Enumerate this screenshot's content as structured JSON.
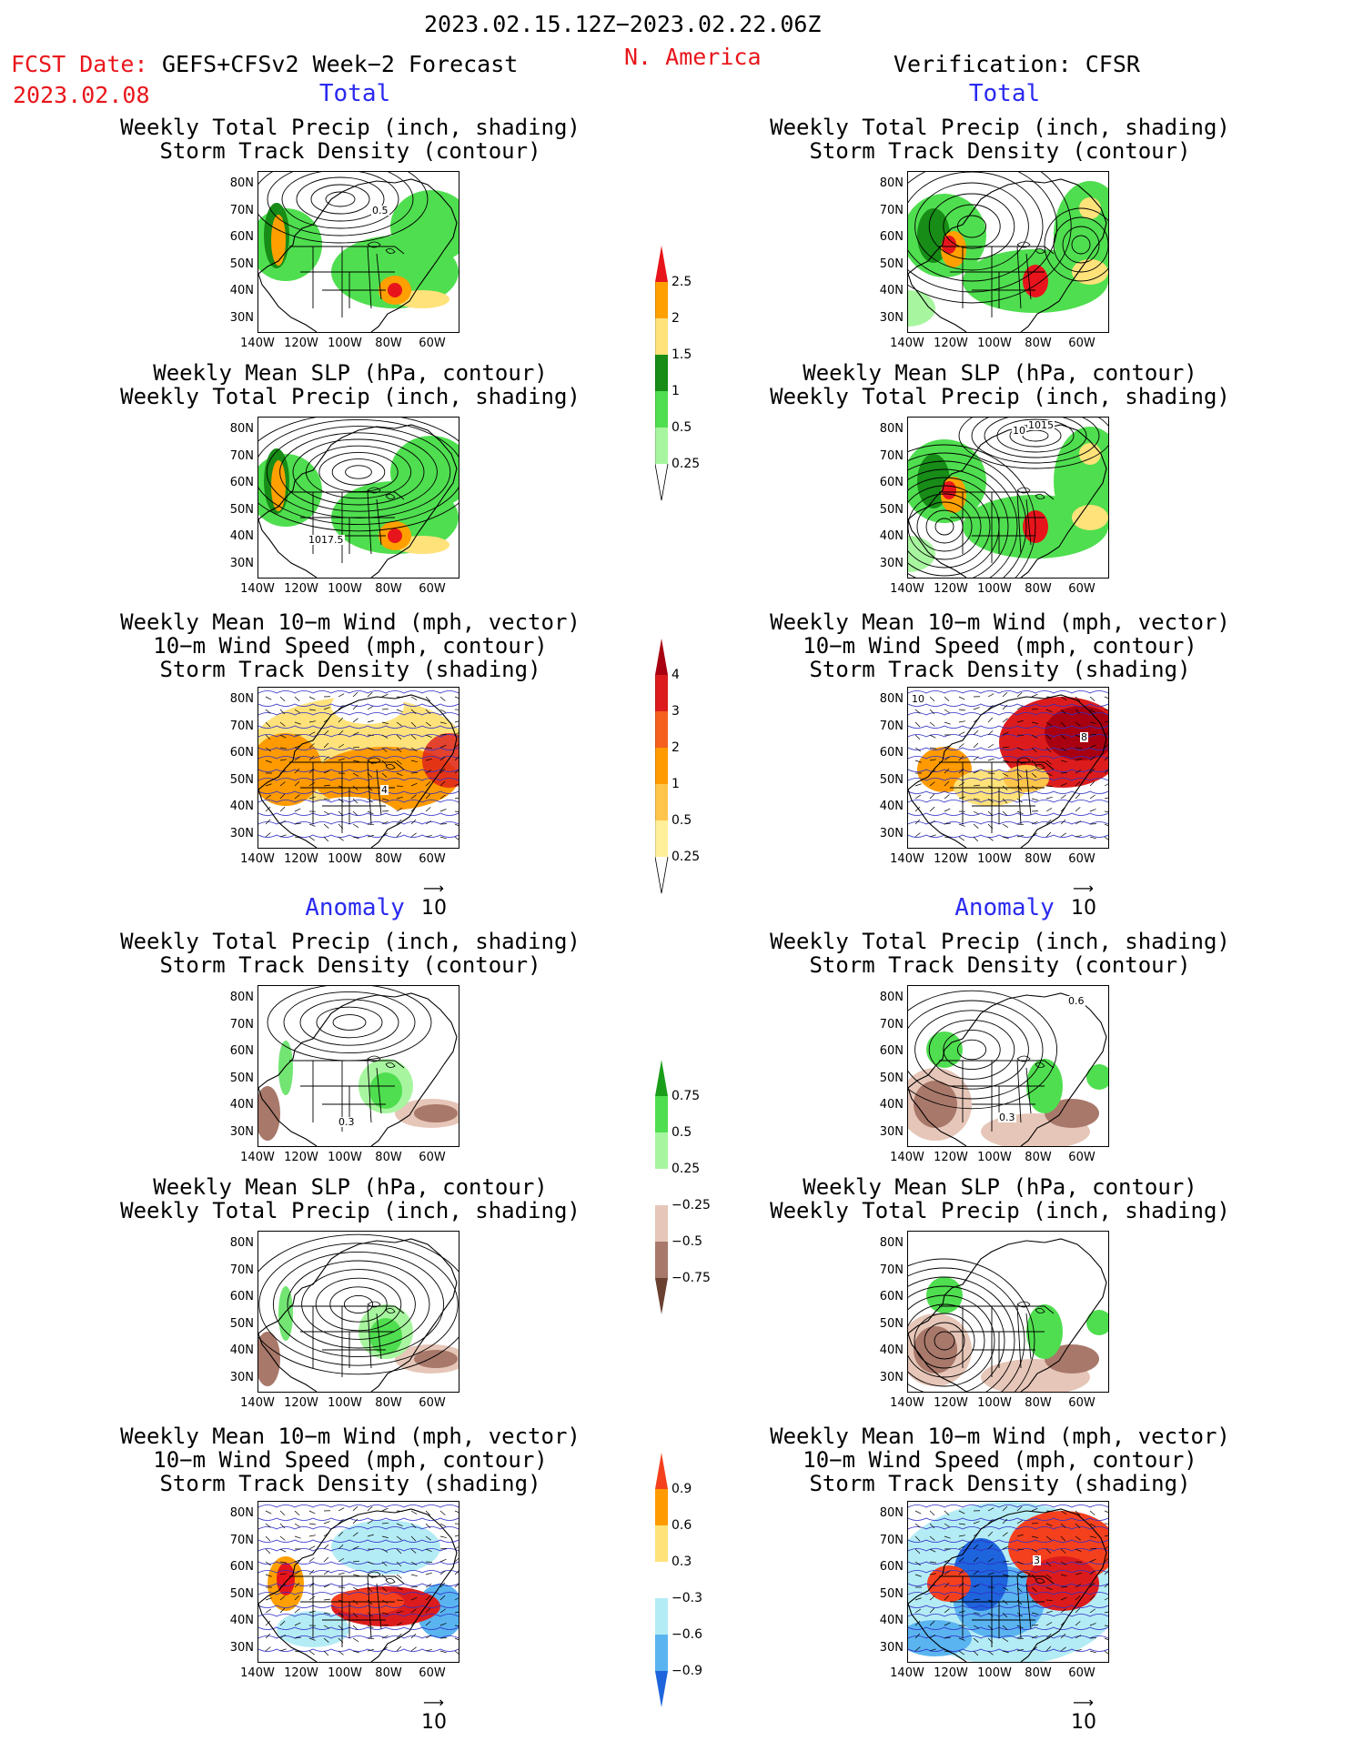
{
  "header": {
    "date_range": "2023.02.15.12Z−2023.02.22.06Z",
    "fcst_label": "FCST Date:",
    "fcst_model": "GEFS+CFSv2 Week−2 Forecast",
    "fcst_date": "2023.02.08",
    "region": "N. America",
    "verification": "Verification: CFSR"
  },
  "sections": {
    "total": "Total",
    "anomaly": "Anomaly"
  },
  "titles": {
    "precip_storm": [
      "Weekly Total Precip (inch, shading)",
      "Storm Track Density (contour)"
    ],
    "slp_precip": [
      "Weekly Mean SLP (hPa, contour)",
      "Weekly Total Precip (inch, shading)"
    ],
    "wind_storm": [
      "Weekly Mean 10−m Wind (mph, vector)",
      "10−m Wind Speed (mph, contour)",
      "Storm Track Density (shading)"
    ]
  },
  "axes": {
    "lat_labels": [
      "80N",
      "70N",
      "60N",
      "50N",
      "40N",
      "30N"
    ],
    "lon_labels": [
      "140W",
      "120W",
      "100W",
      "80W",
      "60W"
    ]
  },
  "contour_labels": {
    "slp_left_total": "1017.5",
    "slp_right_total": "1015",
    "slp_right_total_b": "10",
    "storm_left_total": "0.5",
    "wind_left_total": "4",
    "wind_right_total": "8",
    "wind_right_total_b": "10",
    "anom_left": "0.3",
    "anom_right": "0.6",
    "anom_right_b": "0.3",
    "anom_wind_right": "3"
  },
  "vector_ref": "10",
  "colorbars": {
    "precip_total": {
      "labels": [
        "2.5",
        "2",
        "1.5",
        "1",
        "0.5",
        "0.25"
      ],
      "colors": [
        "#e8141b",
        "#ffa000",
        "#ffe27a",
        "#178c17",
        "#4fde4f",
        "#a8f5a0"
      ]
    },
    "storm_total": {
      "labels": [
        "4",
        "3",
        "2",
        "1",
        "0.5",
        "0.25"
      ],
      "colors": [
        "#a80010",
        "#dc1c1c",
        "#f5601e",
        "#ff9a00",
        "#ffc54a",
        "#ffef9a"
      ]
    },
    "precip_anom": {
      "labels": [
        "0.75",
        "0.5",
        "0.25",
        "−0.25",
        "−0.5",
        "−0.75"
      ],
      "colors_pos": [
        "#1a9e1a",
        "#4fde4f",
        "#a8f5a0"
      ],
      "colors_neg": [
        "#e6c6b8",
        "#a8786a",
        "#6a4030"
      ]
    },
    "storm_anom": {
      "labels": [
        "0.9",
        "0.6",
        "0.3",
        "−0.3",
        "−0.6",
        "−0.9"
      ],
      "colors_pos": [
        "#f5401e",
        "#ff9a00",
        "#ffe27a"
      ],
      "colors_neg": [
        "#b4ecf5",
        "#5ab4f0",
        "#1e64dc"
      ]
    }
  }
}
